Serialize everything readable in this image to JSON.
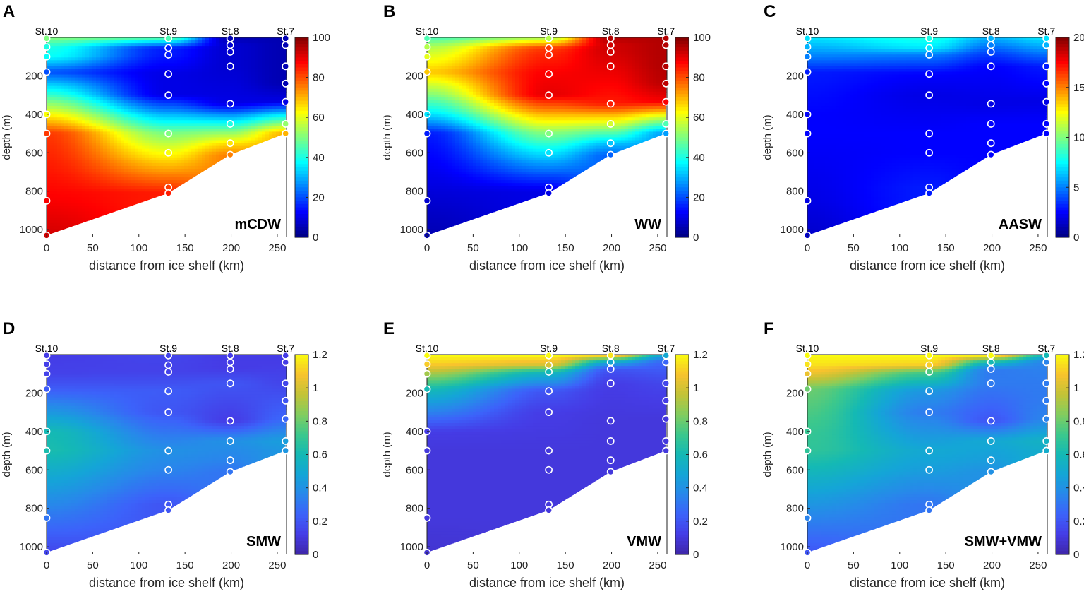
{
  "figure": {
    "shared": {
      "xlabel": "distance from ice shelf (km)",
      "ylabel": "depth (m)",
      "x_ticks": [
        0,
        50,
        100,
        150,
        200,
        250
      ],
      "y_ticks": [
        200,
        400,
        600,
        800,
        1000
      ],
      "xlim": [
        0,
        260
      ],
      "ylim": [
        0,
        1040
      ],
      "stations": [
        {
          "name": "St.10",
          "x": 0,
          "depths": [
            5,
            50,
            100,
            180,
            400,
            500,
            850,
            1030
          ],
          "bottom": 1030
        },
        {
          "name": "St.9",
          "x": 132,
          "depths": [
            5,
            55,
            90,
            190,
            300,
            500,
            600,
            780,
            810
          ],
          "bottom": 810
        },
        {
          "name": "St.8",
          "x": 199,
          "depths": [
            5,
            40,
            75,
            150,
            345,
            450,
            550,
            610
          ],
          "bottom": 610
        },
        {
          "name": "St.7",
          "x": 259,
          "depths": [
            5,
            40,
            150,
            240,
            335,
            450,
            500
          ],
          "bottom": 500
        }
      ]
    }
  },
  "chart_data": [
    {
      "type": "heatmap",
      "panel": "A",
      "label": "mCDW",
      "colormap": "jet",
      "clim": [
        0,
        100
      ],
      "cbar_ticks": [
        0,
        20,
        40,
        60,
        80,
        100
      ],
      "station_values": [
        [
          50,
          40,
          38,
          20,
          62,
          82,
          88,
          92
        ],
        [
          45,
          15,
          15,
          10,
          10,
          50,
          62,
          82,
          85
        ],
        [
          5,
          8,
          8,
          8,
          10,
          40,
          65,
          75
        ],
        [
          5,
          5,
          5,
          5,
          10,
          52,
          70
        ]
      ]
    },
    {
      "type": "heatmap",
      "panel": "B",
      "label": "WW",
      "colormap": "jet",
      "clim": [
        0,
        100
      ],
      "cbar_ticks": [
        0,
        20,
        40,
        60,
        80,
        100
      ],
      "station_values": [
        [
          45,
          55,
          60,
          68,
          35,
          15,
          8,
          5
        ],
        [
          55,
          82,
          84,
          88,
          90,
          50,
          35,
          12,
          10
        ],
        [
          95,
          92,
          92,
          90,
          85,
          58,
          32,
          22
        ],
        [
          95,
          95,
          95,
          94,
          88,
          45,
          28
        ]
      ]
    },
    {
      "type": "heatmap",
      "panel": "C",
      "label": "AASW",
      "colormap": "jet",
      "clim": [
        0,
        20
      ],
      "cbar_ticks": [
        0,
        5,
        10,
        15,
        20
      ],
      "station_values": [
        [
          7,
          6,
          5,
          3,
          2.5,
          2.5,
          2,
          1.5
        ],
        [
          8,
          7,
          5,
          2.5,
          2,
          2.5,
          2.5,
          3,
          3
        ],
        [
          6,
          5,
          4,
          2.5,
          2,
          2.5,
          2.5,
          2.5
        ],
        [
          7,
          6,
          3,
          2.5,
          2,
          2.5,
          2.5
        ]
      ]
    },
    {
      "type": "heatmap",
      "panel": "D",
      "label": "SMW",
      "colormap": "parula",
      "clim": [
        0,
        1.2
      ],
      "cbar_ticks": [
        0,
        0.2,
        0.4,
        0.6,
        0.8,
        1,
        1.2
      ],
      "station_values": [
        [
          0.12,
          0.13,
          0.14,
          0.22,
          0.6,
          0.62,
          0.3,
          0.15
        ],
        [
          0.15,
          0.14,
          0.14,
          0.22,
          0.2,
          0.4,
          0.35,
          0.2,
          0.2
        ],
        [
          0.12,
          0.12,
          0.12,
          0.2,
          0.12,
          0.4,
          0.35,
          0.3
        ],
        [
          0.12,
          0.12,
          0.15,
          0.2,
          0.25,
          0.45,
          0.42
        ]
      ]
    },
    {
      "type": "heatmap",
      "panel": "E",
      "label": "VMW",
      "colormap": "parula",
      "clim": [
        0,
        1.2
      ],
      "cbar_ticks": [
        0,
        0.2,
        0.4,
        0.6,
        0.8,
        1,
        1.2
      ],
      "station_values": [
        [
          1.2,
          1.1,
          0.9,
          0.6,
          0.12,
          0.1,
          0.1,
          0.08
        ],
        [
          1.2,
          1.0,
          0.6,
          0.2,
          0.12,
          0.1,
          0.1,
          0.1,
          0.1
        ],
        [
          1.15,
          0.5,
          0.2,
          0.12,
          0.1,
          0.1,
          0.1,
          0.1
        ],
        [
          0.5,
          0.25,
          0.15,
          0.12,
          0.1,
          0.1,
          0.1
        ]
      ]
    },
    {
      "type": "heatmap",
      "panel": "F",
      "label": "SMW+VMW",
      "colormap": "parula",
      "clim": [
        0,
        1.2
      ],
      "cbar_ticks": [
        0,
        0.2,
        0.4,
        0.6,
        0.8,
        1,
        1.2
      ],
      "station_values": [
        [
          1.2,
          1.15,
          1.05,
          0.8,
          0.7,
          0.68,
          0.35,
          0.2
        ],
        [
          1.2,
          1.1,
          0.75,
          0.42,
          0.32,
          0.5,
          0.45,
          0.3,
          0.3
        ],
        [
          1.2,
          0.6,
          0.32,
          0.32,
          0.2,
          0.5,
          0.45,
          0.4
        ],
        [
          0.6,
          0.35,
          0.32,
          0.32,
          0.35,
          0.55,
          0.52
        ]
      ]
    }
  ]
}
